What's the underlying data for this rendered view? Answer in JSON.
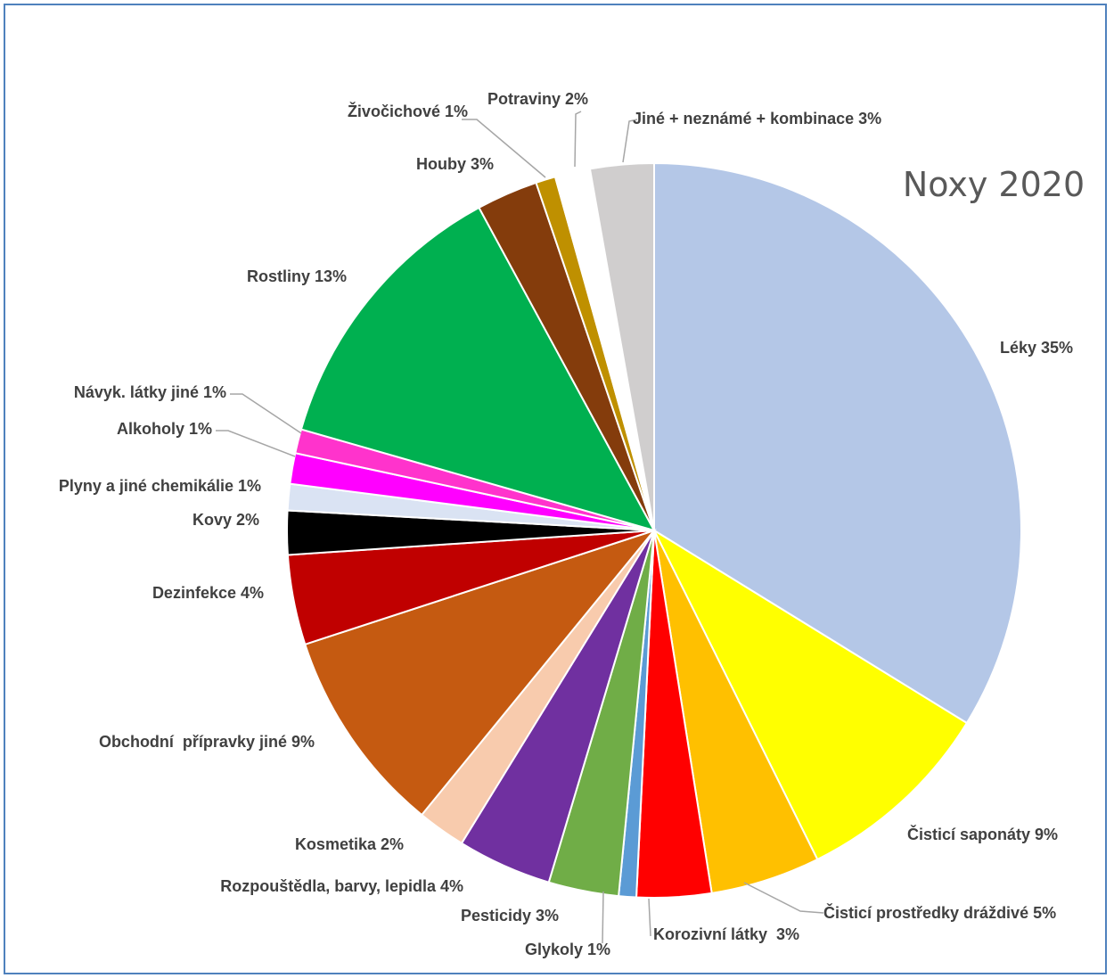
{
  "chart_data": {
    "type": "pie",
    "title": "Noxy 2020",
    "slices": [
      {
        "label": "Léky 35%",
        "value": 35.0,
        "color": "#b4c7e7"
      },
      {
        "label": "Čisticí saponáty 9%",
        "value": 9.2,
        "color": "#ffff00"
      },
      {
        "label": "Čisticí prostředky dráždivé 5%",
        "value": 5.0,
        "color": "#ffc000"
      },
      {
        "label": "Korozivní látky  3%",
        "value": 3.4,
        "color": "#ff0000"
      },
      {
        "label": "Glykoly 1%",
        "value": 0.8,
        "color": "#5b9bd5"
      },
      {
        "label": "Pesticidy 3%",
        "value": 3.2,
        "color": "#70ad47"
      },
      {
        "label": "Rozpouštědla, barvy, lepidla 4%",
        "value": 4.3,
        "color": "#7030a0"
      },
      {
        "label": "Kosmetika 2%",
        "value": 2.2,
        "color": "#f8cbad"
      },
      {
        "label": "Obchodní  přípravky jiné 9%",
        "value": 9.4,
        "color": "#c55a11"
      },
      {
        "label": "Dezinfekce 4%",
        "value": 4.1,
        "color": "#c00000"
      },
      {
        "label": "Kovy 2%",
        "value": 2.0,
        "color": "#000000"
      },
      {
        "label": "Plyny a jiné chemikálie 1%",
        "value": 1.2,
        "color": "#dae3f3"
      },
      {
        "label": "Alkoholy 1%",
        "value": 1.4,
        "color": "#ff00ff"
      },
      {
        "label": "Návyk. látky jiné 1%",
        "value": 1.1,
        "color": "#ff33cc"
      },
      {
        "label": "Rostliny 13%",
        "value": 13.1,
        "color": "#00b050"
      },
      {
        "label": "Houby 3%",
        "value": 2.8,
        "color": "#843c0c"
      },
      {
        "label": "Živočichové 1%",
        "value": 0.9,
        "color": "#bf9000"
      },
      {
        "label": "Potraviny 2%",
        "value": 1.6,
        "color": "#ffffff"
      },
      {
        "label": "Jiné + neznámé + kombinace 3%",
        "value": 2.9,
        "color": "#d0cece"
      }
    ]
  }
}
